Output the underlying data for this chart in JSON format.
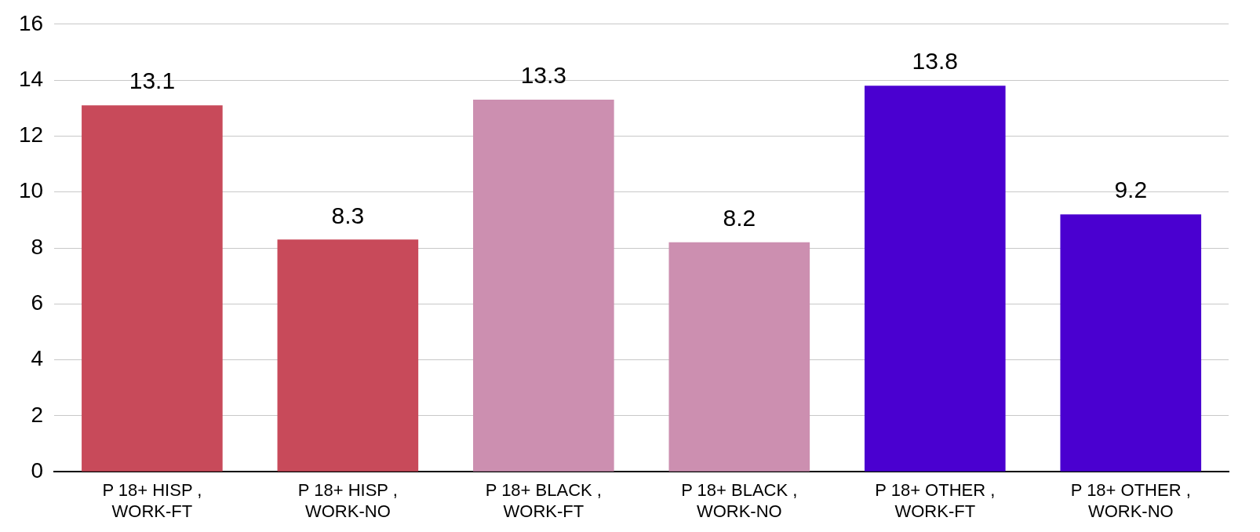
{
  "chart_data": {
    "type": "bar",
    "categories": [
      "P 18+ HISP , WORK-FT",
      "P 18+ HISP , WORK-NO",
      "P 18+ BLACK , WORK-FT",
      "P 18+ BLACK , WORK-NO",
      "P 18+ OTHER , WORK-FT",
      "P 18+ OTHER , WORK-NO"
    ],
    "values": [
      13.1,
      8.3,
      13.3,
      8.2,
      13.8,
      9.2
    ],
    "colors": [
      "#c84a5a",
      "#c84a5a",
      "#cc8fb0",
      "#cc8fb0",
      "#4a00d0",
      "#4a00d0"
    ],
    "ylim": [
      0,
      16
    ],
    "yticks": [
      0,
      2,
      4,
      6,
      8,
      10,
      12,
      14,
      16
    ],
    "grid": "y",
    "data_labels": true,
    "legend": false
  }
}
